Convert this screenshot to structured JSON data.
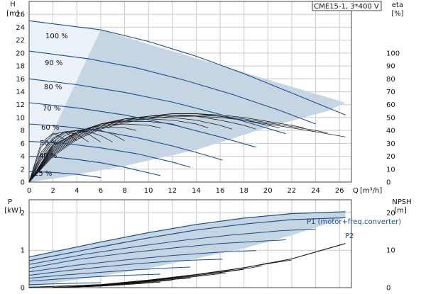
{
  "chart_data": [
    {
      "type": "line",
      "title": "CME15-1, 3*400 V",
      "x_axis": {
        "name": "Q",
        "unit": "[m³/h]",
        "lim": [
          0,
          27
        ],
        "ticks": [
          0,
          2,
          4,
          6,
          8,
          10,
          12,
          14,
          16,
          18,
          20,
          22,
          24,
          26
        ]
      },
      "y_left": {
        "name": "H",
        "unit": "[m]",
        "lim": [
          0,
          28
        ],
        "ticks": [
          0,
          2,
          4,
          6,
          8,
          10,
          12,
          14,
          16,
          18,
          20,
          22,
          24,
          26
        ]
      },
      "y_right": {
        "name": "eta",
        "unit": "[%]",
        "lim": [
          0,
          140
        ],
        "ticks": [
          0,
          10,
          20,
          30,
          40,
          50,
          60,
          70,
          80,
          90,
          100
        ]
      },
      "grid": true,
      "operating_region": [
        [
          0,
          0
        ],
        [
          0,
          25
        ],
        [
          6,
          23.6
        ],
        [
          26.5,
          12.3
        ],
        [
          25,
          11
        ],
        [
          20,
          8.5
        ],
        [
          14,
          5
        ],
        [
          8,
          2.5
        ],
        [
          3,
          0.8
        ],
        [
          0,
          0
        ]
      ],
      "series": [
        {
          "name": "100 %",
          "x": [
            0,
            6,
            10,
            14,
            18,
            22,
            26.5
          ],
          "y": [
            25,
            23.6,
            21.8,
            19.5,
            16.8,
            13.8,
            10.4
          ]
        },
        {
          "name": "90 %",
          "x": [
            0,
            5,
            9,
            13,
            17,
            21,
            24
          ],
          "y": [
            20.3,
            19.1,
            17.7,
            15.8,
            13.6,
            11.1,
            9.0
          ]
        },
        {
          "name": "80 %",
          "x": [
            0,
            4,
            8,
            12,
            16,
            21.5
          ],
          "y": [
            16.0,
            15.1,
            13.9,
            12.4,
            10.5,
            7.5
          ]
        },
        {
          "name": "70 %",
          "x": [
            0,
            4,
            8,
            12,
            16,
            19
          ],
          "y": [
            12.3,
            11.5,
            10.4,
            8.9,
            7.0,
            5.4
          ]
        },
        {
          "name": "60 %",
          "x": [
            0,
            3,
            6,
            9,
            12,
            14,
            16.2
          ],
          "y": [
            9.0,
            8.6,
            7.9,
            6.9,
            5.6,
            4.6,
            3.4
          ]
        },
        {
          "name": "50 %",
          "x": [
            0,
            3,
            6,
            9,
            12,
            13.5
          ],
          "y": [
            6.3,
            6.0,
            5.3,
            4.4,
            3.1,
            2.3
          ]
        },
        {
          "name": "40 %",
          "x": [
            0,
            2,
            4,
            6,
            8,
            11
          ],
          "y": [
            4.0,
            3.9,
            3.5,
            3.0,
            2.3,
            1.0
          ]
        },
        {
          "name": "25 %",
          "x": [
            0,
            2,
            4,
            6
          ],
          "y": [
            1.6,
            1.5,
            1.2,
            0.7
          ]
        }
      ],
      "efficiency": [
        {
          "x": [
            0,
            2,
            4,
            6,
            8,
            10,
            12,
            14,
            16,
            18,
            20,
            22,
            24,
            26.5
          ],
          "y": [
            0,
            20,
            33,
            41,
            46,
            49,
            51,
            51,
            50,
            48,
            45,
            42,
            39,
            35
          ]
        },
        {
          "x": [
            0,
            2,
            4,
            6,
            8,
            10,
            12,
            14,
            16,
            18,
            20,
            22,
            24,
            25
          ],
          "y": [
            0,
            21,
            34,
            42,
            47,
            50,
            52,
            52,
            51,
            49,
            46,
            43,
            40,
            38
          ]
        },
        {
          "x": [
            0,
            2,
            4,
            6,
            8,
            10,
            12,
            14,
            16,
            18,
            20,
            22,
            23
          ],
          "y": [
            0,
            22,
            35,
            43,
            48,
            51,
            53,
            53,
            52,
            50,
            47,
            44,
            42
          ]
        },
        {
          "x": [
            0,
            2,
            4,
            6,
            8,
            10,
            12,
            14,
            16,
            18,
            20,
            21
          ],
          "y": [
            0,
            23,
            36,
            44,
            49,
            51,
            53,
            53,
            51,
            48,
            44,
            42
          ]
        },
        {
          "x": [
            0,
            2,
            4,
            6,
            8,
            10,
            12,
            14,
            16,
            18,
            19
          ],
          "y": [
            0,
            24,
            37,
            45,
            49,
            51,
            52,
            51,
            48,
            44,
            41
          ]
        },
        {
          "x": [
            0,
            2,
            4,
            6,
            8,
            10,
            12,
            14,
            16,
            17
          ],
          "y": [
            0,
            25,
            38,
            45,
            49,
            50,
            50,
            48,
            44,
            41
          ]
        },
        {
          "x": [
            0,
            2,
            4,
            6,
            8,
            10,
            12,
            14,
            15
          ],
          "y": [
            0,
            26,
            38,
            45,
            48,
            49,
            48,
            45,
            42
          ]
        },
        {
          "x": [
            0,
            2,
            4,
            6,
            8,
            10,
            12,
            13
          ],
          "y": [
            0,
            27,
            39,
            45,
            47,
            47,
            45,
            42
          ]
        },
        {
          "x": [
            0,
            2,
            4,
            6,
            8,
            10,
            11
          ],
          "y": [
            0,
            28,
            39,
            44,
            45,
            44,
            42
          ]
        },
        {
          "x": [
            0,
            2,
            4,
            6,
            8,
            9
          ],
          "y": [
            0,
            29,
            38,
            42,
            42,
            40
          ]
        },
        {
          "x": [
            0,
            1,
            2,
            3,
            4,
            5,
            6,
            7,
            8
          ],
          "y": [
            0,
            17,
            29,
            36,
            40,
            41,
            40,
            37,
            32
          ]
        },
        {
          "x": [
            0,
            1,
            2,
            3,
            4,
            5,
            6,
            7
          ],
          "y": [
            0,
            19,
            31,
            38,
            40,
            39,
            36,
            31
          ]
        },
        {
          "x": [
            0,
            1,
            2,
            3,
            4,
            5,
            6
          ],
          "y": [
            0,
            21,
            33,
            39,
            40,
            37,
            31
          ]
        },
        {
          "x": [
            0,
            1,
            2,
            3,
            4,
            5
          ],
          "y": [
            0,
            23,
            34,
            39,
            37,
            31
          ]
        },
        {
          "x": [
            0,
            1,
            2,
            3,
            4
          ],
          "y": [
            0,
            27,
            37,
            39,
            32
          ]
        },
        {
          "x": [
            0,
            1,
            2,
            3
          ],
          "y": [
            0,
            30,
            38,
            33
          ]
        }
      ]
    },
    {
      "type": "line",
      "x_axis": {
        "lim": [
          0,
          27
        ],
        "ticks": [
          0,
          2,
          4,
          6,
          8,
          10,
          12,
          14,
          16,
          18,
          20,
          22,
          24,
          26
        ]
      },
      "y_left": {
        "name": "P",
        "unit": "[kW]",
        "lim": [
          0,
          2.35
        ],
        "ticks": [
          0,
          1,
          2
        ]
      },
      "y_right": {
        "name": "NPSH",
        "unit": "[m]",
        "lim": [
          0,
          23.5
        ],
        "ticks": [
          0,
          10,
          20
        ]
      },
      "grid": true,
      "series": [
        {
          "name": "P1 (motor+freq.converter)",
          "x": [
            0,
            6,
            10,
            14,
            18,
            22,
            26.5
          ],
          "y": [
            0.82,
            1.22,
            1.47,
            1.69,
            1.86,
            1.98,
            2.03
          ]
        },
        {
          "name": "P2",
          "x": [
            0,
            6,
            10,
            14,
            18,
            22,
            26.5
          ],
          "y": [
            0.72,
            1.09,
            1.33,
            1.54,
            1.7,
            1.82,
            1.87
          ]
        }
      ],
      "other_power_curves": [
        {
          "x": [
            0,
            5,
            9,
            13,
            17,
            21,
            24
          ],
          "y": [
            0.62,
            0.91,
            1.1,
            1.27,
            1.41,
            1.52,
            1.57
          ]
        },
        {
          "x": [
            0,
            4,
            8,
            12,
            16,
            21.5
          ],
          "y": [
            0.52,
            0.75,
            0.92,
            1.06,
            1.18,
            1.28
          ]
        },
        {
          "x": [
            0,
            4,
            8,
            12,
            16,
            19
          ],
          "y": [
            0.42,
            0.6,
            0.74,
            0.86,
            0.95,
            0.99
          ]
        },
        {
          "x": [
            0,
            3,
            6,
            9,
            12,
            14,
            16.2
          ],
          "y": [
            0.33,
            0.45,
            0.55,
            0.64,
            0.71,
            0.74,
            0.76
          ]
        },
        {
          "x": [
            0,
            3,
            6,
            9,
            12,
            13.5
          ],
          "y": [
            0.25,
            0.34,
            0.41,
            0.48,
            0.53,
            0.55
          ]
        },
        {
          "x": [
            0,
            2,
            4,
            6,
            8,
            11
          ],
          "y": [
            0.17,
            0.22,
            0.26,
            0.3,
            0.33,
            0.36
          ]
        },
        {
          "x": [
            0,
            2,
            4,
            6
          ],
          "y": [
            0.08,
            0.1,
            0.12,
            0.13
          ]
        }
      ],
      "npsh": {
        "x": [
          0,
          6,
          10,
          14,
          18,
          22,
          26.5
        ],
        "y": [
          0.1,
          0.8,
          2.0,
          3.5,
          5.3,
          7.7,
          11.8
        ]
      },
      "npsh_segments": [
        {
          "x": [
            8,
            12,
            16,
            20,
            22
          ],
          "y": [
            1.2,
            2.6,
            4.3,
            6.4,
            7.4
          ]
        },
        {
          "x": [
            6,
            10,
            14,
            18,
            19.5
          ],
          "y": [
            0.7,
            1.8,
            3.2,
            5.0,
            5.8
          ]
        },
        {
          "x": [
            4,
            8,
            12,
            16,
            18
          ],
          "y": [
            0.3,
            1.1,
            2.4,
            4.0,
            4.9
          ]
        },
        {
          "x": [
            4,
            8,
            12,
            14,
            16.5
          ],
          "y": [
            0.2,
            1.0,
            2.2,
            3.0,
            3.9
          ]
        },
        {
          "x": [
            2,
            6,
            10,
            13.5
          ],
          "y": [
            0.1,
            0.6,
            1.6,
            2.6
          ]
        },
        {
          "x": [
            2,
            6,
            10,
            12
          ],
          "y": [
            0.1,
            0.5,
            1.4,
            2.0
          ]
        },
        {
          "x": [
            2,
            6,
            9,
            11
          ],
          "y": [
            0.05,
            0.4,
            1.0,
            1.5
          ]
        },
        {
          "x": [
            2,
            4,
            6,
            8
          ],
          "y": [
            0.05,
            0.2,
            0.4,
            0.8
          ]
        },
        {
          "x": [
            1,
            3,
            5,
            6
          ],
          "y": [
            0.02,
            0.1,
            0.3,
            0.4
          ]
        }
      ]
    }
  ],
  "colors": {
    "region": "#c6d5e4",
    "region_light": "#eaf1f8",
    "curve": "#1d4e87",
    "npsh": "#111111",
    "grid": "#c9c9c9",
    "axis": "#444444"
  }
}
